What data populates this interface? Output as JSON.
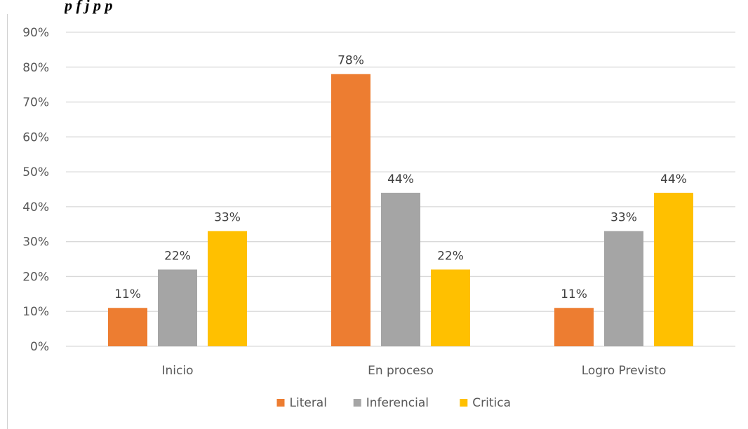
{
  "header": {
    "caption_fragment": "p     f   j   p                                         p"
  },
  "chart_data": {
    "type": "bar",
    "categories": [
      "Inicio",
      "En proceso",
      "Logro Previsto"
    ],
    "series": [
      {
        "name": "Literal",
        "values": [
          11,
          78,
          11
        ],
        "labels": [
          "11%",
          "78%",
          "11%"
        ],
        "color": "#ED7D31"
      },
      {
        "name": "Inferencial",
        "values": [
          22,
          44,
          33
        ],
        "labels": [
          "22%",
          "44%",
          "33%"
        ],
        "color": "#A5A5A5"
      },
      {
        "name": "Critica",
        "values": [
          33,
          22,
          44
        ],
        "labels": [
          "33%",
          "22%",
          "44%"
        ],
        "color": "#FFC000"
      }
    ],
    "yticks": [
      "0%",
      "10%",
      "20%",
      "30%",
      "40%",
      "50%",
      "60%",
      "70%",
      "80%",
      "90%"
    ],
    "ylim": [
      0,
      90
    ],
    "grid": true,
    "legend": "bottom-center",
    "gridColor": "#D9D9D9"
  }
}
